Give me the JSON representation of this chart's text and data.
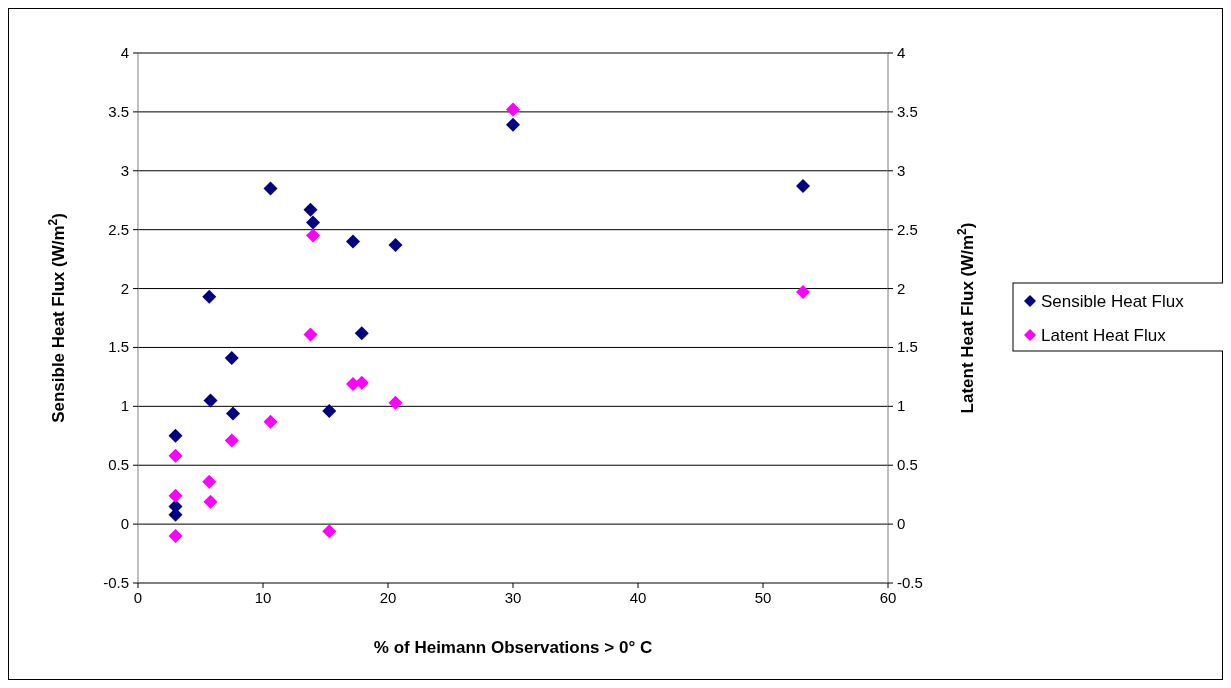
{
  "chart_data": {
    "type": "scatter",
    "xlabel": "% of Heimann Observations > 0° C",
    "ylabel": "Sensible Heat Flux (W/m$^{2}$)",
    "y2label": "Latent Heat Flux (W/m$^{2}$)",
    "xlim": [
      0,
      60
    ],
    "xticks": [
      0,
      10,
      20,
      30,
      40,
      50,
      60
    ],
    "ylim": [
      -0.5,
      4
    ],
    "yticks": [
      -0.5,
      0,
      0.5,
      1,
      1.5,
      2,
      2.5,
      3,
      3.5,
      4
    ],
    "y2lim": [
      -0.5,
      4
    ],
    "y2ticks": [
      -0.5,
      0,
      0.5,
      1,
      1.5,
      2,
      2.5,
      3,
      3.5,
      4
    ],
    "grid": "y",
    "legend": "right",
    "marker": "diamond",
    "series": [
      {
        "name": "Sensible Heat Flux",
        "color": "#000080",
        "x": [
          3.0,
          3.0,
          3.0,
          5.7,
          5.8,
          7.5,
          7.6,
          10.6,
          13.8,
          14.0,
          17.2,
          20.6,
          17.9,
          15.3,
          30.0,
          53.2
        ],
        "values": [
          0.75,
          0.15,
          0.08,
          1.93,
          1.05,
          1.41,
          0.94,
          2.85,
          2.67,
          2.56,
          2.4,
          2.37,
          1.62,
          0.96,
          3.39,
          2.87
        ]
      },
      {
        "name": "Latent Heat Flux",
        "color": "#ff00ff",
        "axis": "y2",
        "x": [
          3.0,
          3.0,
          3.0,
          5.7,
          5.8,
          7.5,
          10.6,
          13.8,
          14.0,
          17.2,
          17.9,
          20.6,
          15.3,
          30.0,
          53.2
        ],
        "values": [
          0.58,
          0.24,
          -0.1,
          0.36,
          0.19,
          0.71,
          0.87,
          1.61,
          2.45,
          1.19,
          1.2,
          1.03,
          -0.06,
          3.52,
          1.97
        ]
      }
    ]
  }
}
